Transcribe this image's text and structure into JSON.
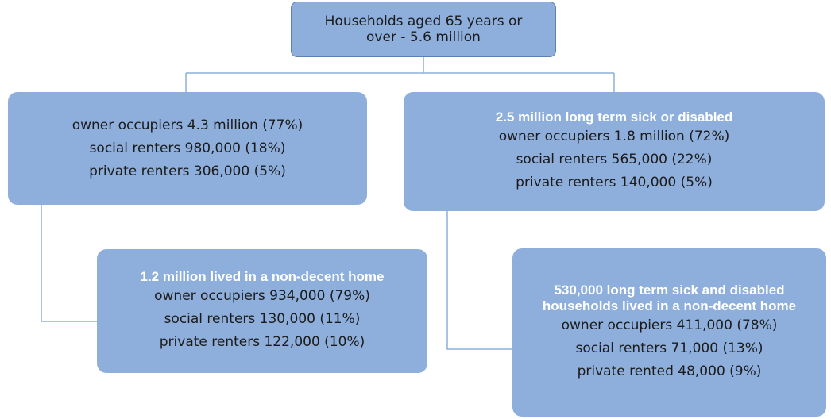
{
  "nodes": [
    {
      "lines": [
        "Households aged 65 years or",
        "over - 5.6 million"
      ]
    },
    {
      "lines": [
        "owner occupiers 4.3 million (77%)",
        "social renters 980,000 (18%)",
        "private renters 306,000 (5%)"
      ]
    },
    {
      "title": [
        "2.5 million long term sick or disabled"
      ],
      "lines": [
        "owner occupiers 1.8 million (72%)",
        "social renters  565,000 (22%)",
        "private renters 140,000 (5%)"
      ]
    },
    {
      "title": [
        "1.2 million lived in a non-decent home"
      ],
      "lines": [
        "owner occupiers 934,000 (79%)",
        "social renters 130,000 (11%)",
        "private renters 122,000 (10%)"
      ]
    },
    {
      "title": [
        "530,000 long term sick and disabled",
        "households lived in a non-decent home"
      ],
      "lines": [
        "owner occupiers 411,000 (78%)",
        "social renters 71,000 (13%)",
        "private rented 48,000 (9%)"
      ]
    }
  ]
}
